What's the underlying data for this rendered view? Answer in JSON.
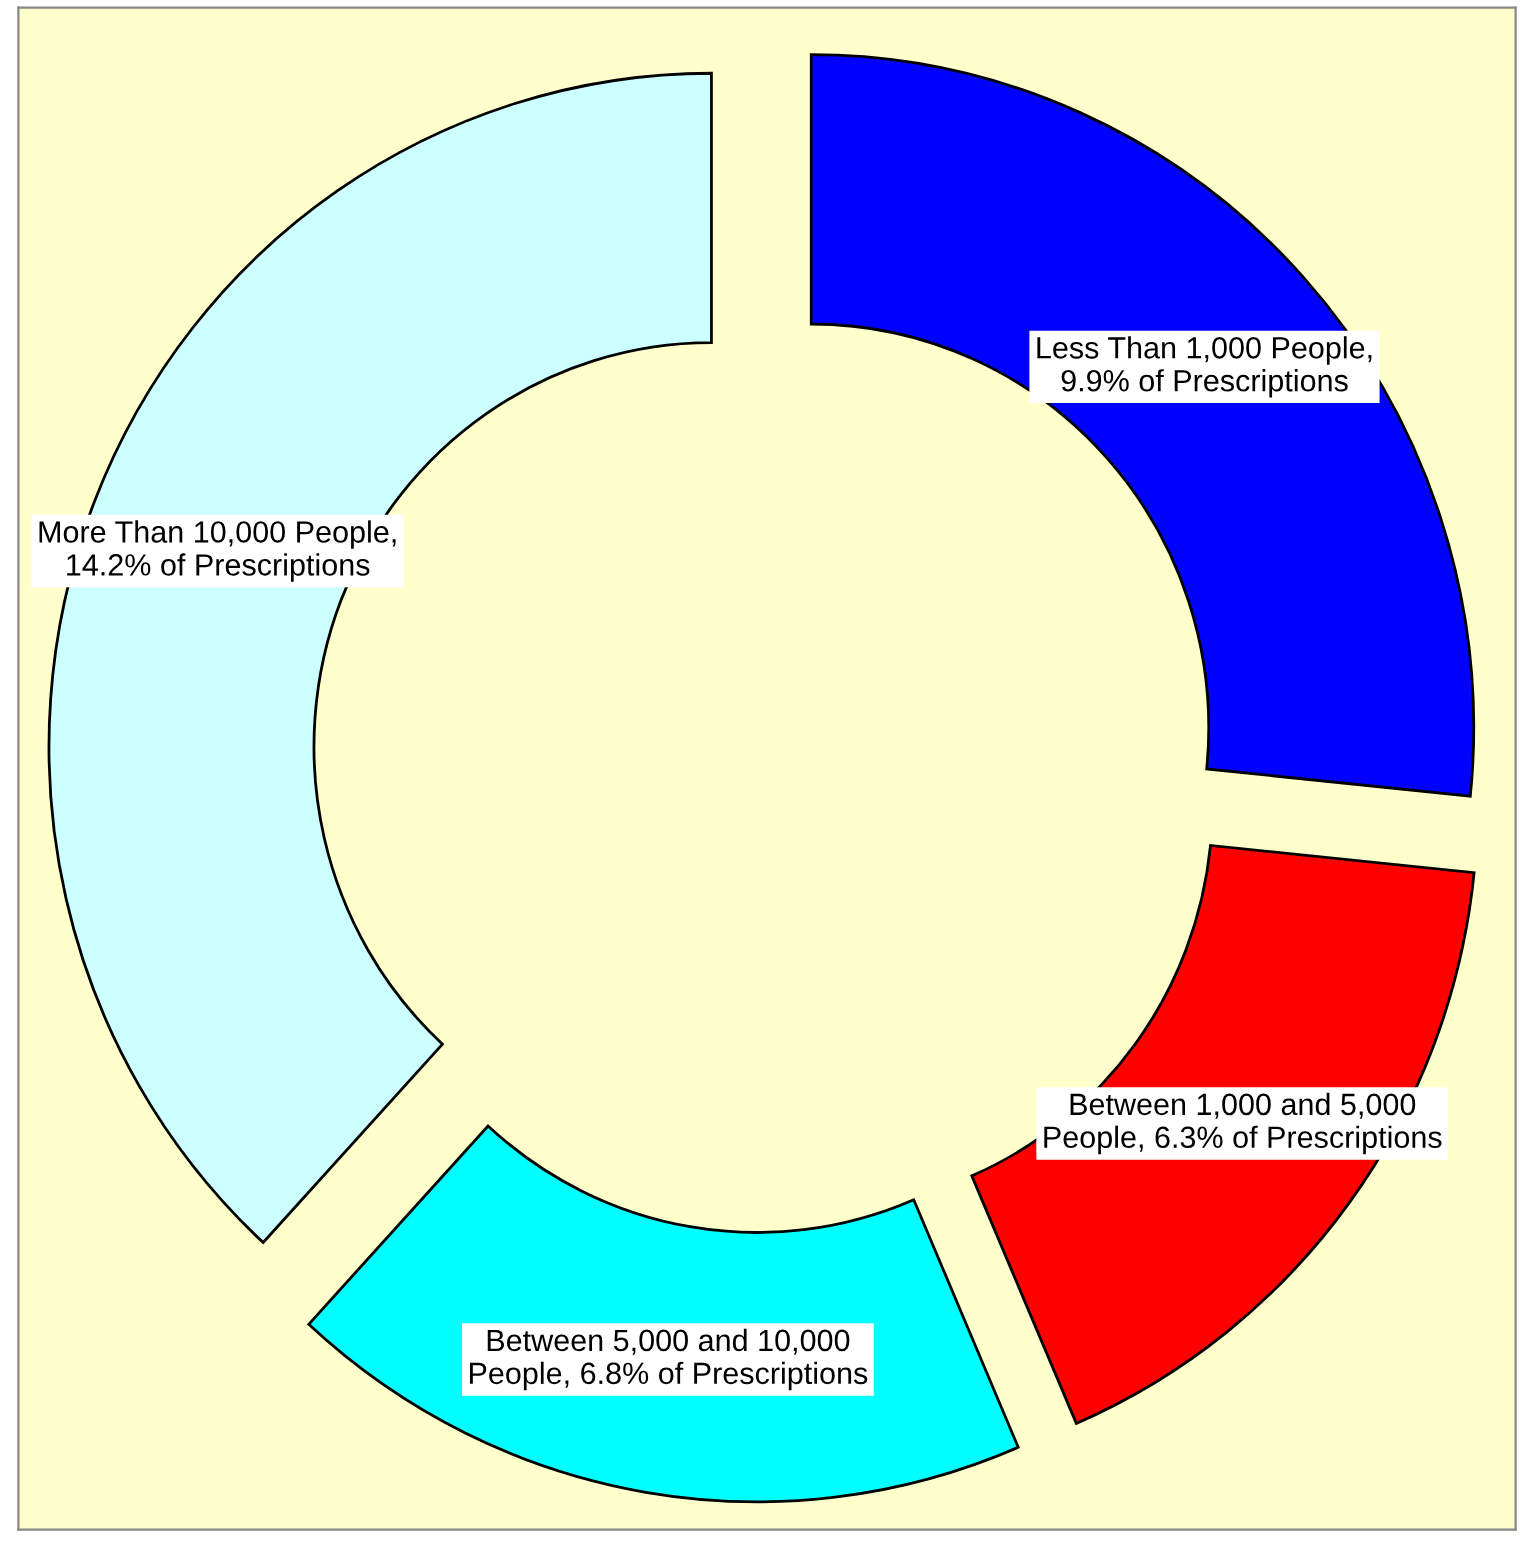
{
  "chart_data": {
    "type": "donut",
    "categories": [
      "Less Than 1,000 People,\n9.9% of Prescriptions",
      "Between 1,000 and 5,000\nPeople, 6.3% of Prescriptions",
      "Between 5,000 and 10,000\nPeople, 6.8% of Prescriptions",
      "More Than 10,000 People,\n14.2% of Prescriptions"
    ],
    "values": [
      9.9,
      6.3,
      6.8,
      14.2
    ],
    "colors": [
      "#0000ff",
      "#ff0000",
      "#00ffff",
      "#ccffff"
    ],
    "legend": false
  }
}
